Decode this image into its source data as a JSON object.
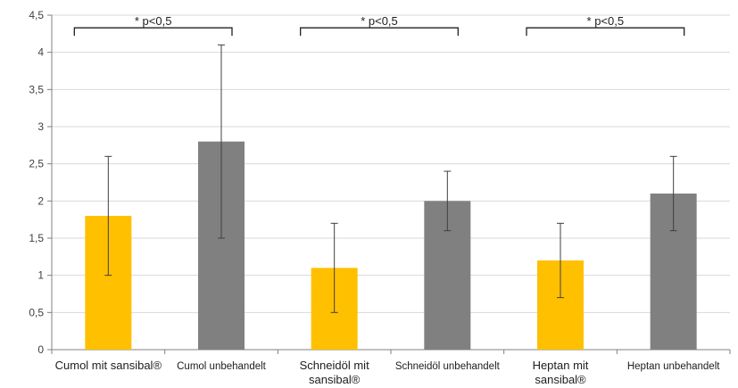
{
  "chart_data": {
    "type": "bar",
    "title": "",
    "xlabel": "",
    "ylabel": "",
    "ylim": [
      0,
      4.5
    ],
    "y_ticks": [
      "0",
      "0,5",
      "1",
      "1,5",
      "2",
      "2,5",
      "3",
      "3,5",
      "4",
      "4,5"
    ],
    "grid": true,
    "legend": "none",
    "categories": [
      {
        "line1": "Cumol mit sansibal®",
        "line2": ""
      },
      {
        "line1": "Cumol unbehandelt",
        "line2": ""
      },
      {
        "line1": "Schneidöl mit",
        "line2": "sansibal®"
      },
      {
        "line1": "Schneidöl unbehandelt",
        "line2": ""
      },
      {
        "line1": "Heptan mit",
        "line2": "sansibal®"
      },
      {
        "line1": "Heptan unbehandelt",
        "line2": ""
      }
    ],
    "values": [
      1.8,
      2.8,
      1.1,
      2.0,
      1.2,
      2.1
    ],
    "error_low": [
      1.0,
      1.5,
      0.5,
      1.6,
      0.7,
      1.6
    ],
    "error_high": [
      2.6,
      4.1,
      1.7,
      2.4,
      1.7,
      2.6
    ],
    "bar_colors": [
      "#FFC000",
      "#808080",
      "#FFC000",
      "#808080",
      "#FFC000",
      "#808080"
    ],
    "significance": [
      {
        "from": 0,
        "to": 1,
        "label": "* p<0,5",
        "y": 4.33
      },
      {
        "from": 2,
        "to": 3,
        "label": "* p<0,5",
        "y": 4.33
      },
      {
        "from": 4,
        "to": 5,
        "label": "* p<0,5",
        "y": 4.33
      }
    ]
  }
}
